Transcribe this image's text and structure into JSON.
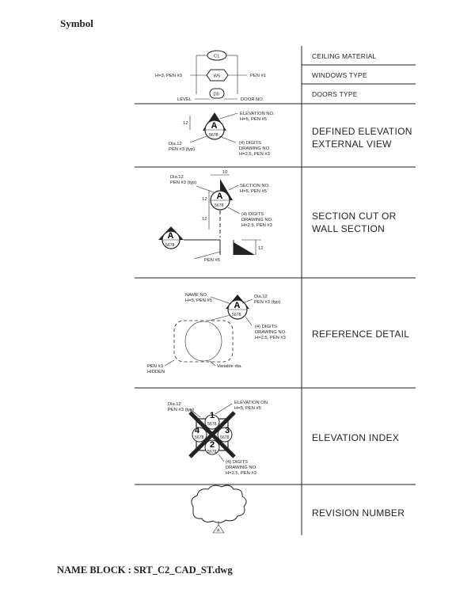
{
  "heading": "Symbol",
  "footer": "NAME BLOCK : SRT_C2_CAD_ST.dwg",
  "rows": [
    {
      "label": "CEILING MATERIAL"
    },
    {
      "label": "WINDOWS TYPE"
    },
    {
      "label": "DOORS TYPE"
    },
    {
      "label_lines": [
        "DEFINED ELEVATION",
        "EXTERNAL VIEW"
      ]
    },
    {
      "label_lines": [
        "SECTION CUT OR",
        "WALL SECTION"
      ]
    },
    {
      "label": "REFERENCE DETAIL"
    },
    {
      "label": "ELEVATION INDEX"
    },
    {
      "label": "REVISION NUMBER"
    }
  ],
  "symbols": {
    "ceiling": {
      "tag": "C1"
    },
    "window": {
      "tag": "W5",
      "left_note": "H=3, PEN #3",
      "right_note": "PEN #1"
    },
    "door": {
      "tag": "D5",
      "left_note": "LEVEL",
      "right_note": "DOOR NO."
    },
    "elevation": {
      "letter": "A",
      "code": "5678",
      "dim": "12",
      "notes": [
        "ELEVATION NO.",
        "H=5, PEN #5"
      ],
      "dia": [
        "Dia.12",
        "PEN #3 (typ)"
      ],
      "digits": [
        "(4) DIGITS",
        "DRAWING NO.",
        "H=2.5, PEN #3"
      ]
    },
    "section": {
      "letter": "A",
      "code": "5678",
      "dim_top": "10",
      "dim_a": "12",
      "dim_b": "12",
      "dim_c": "12",
      "dia": [
        "Dia.12",
        "PEN #3 (typ)"
      ],
      "notes": [
        "SECTION NO.",
        "H=5, PEN #5"
      ],
      "digits": [
        "(4) DIGITS",
        "DRAWING NO.",
        "H=2.5, PEN #3"
      ],
      "pen": "PEN #5"
    },
    "reference": {
      "letter": "A",
      "code": "5678",
      "name": [
        "NAME NO.",
        "H=5, PEN #5"
      ],
      "dia": [
        "Dia.12",
        "PEN #3 (typ)"
      ],
      "digits": [
        "(4) DIGITS",
        "DRAWING NO.",
        "H=2.5, PEN #3"
      ],
      "pen": [
        "PEN #3",
        "HIDDEN"
      ],
      "variable": "Variable dia."
    },
    "index": {
      "n1": "1",
      "n2": "3",
      "n3": "4",
      "n4": "2",
      "code": "5678",
      "dia": [
        "Dia.12",
        "PEN #3 (typ)"
      ],
      "notes": [
        "ELEVATION ON.",
        "H=5, PEN #5"
      ],
      "digits": [
        "(4) DIGITS",
        "DRAWING NO.",
        "H=2.5, PEN #3"
      ]
    },
    "revision": {
      "letter": "A"
    }
  }
}
